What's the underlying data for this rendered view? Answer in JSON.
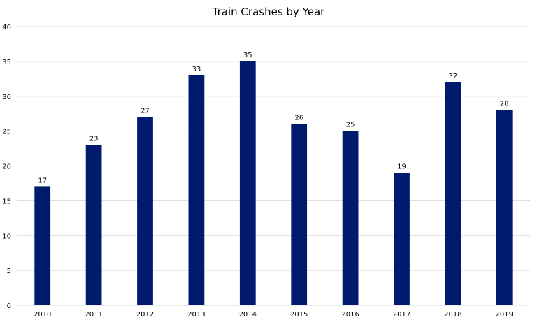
{
  "chart_data": {
    "type": "bar",
    "title": "Train Crashes by Year",
    "categories": [
      "2010",
      "2011",
      "2012",
      "2013",
      "2014",
      "2015",
      "2016",
      "2017",
      "2018",
      "2019"
    ],
    "values": [
      17,
      23,
      27,
      33,
      35,
      26,
      25,
      19,
      32,
      28
    ],
    "data_labels": [
      "17",
      "23",
      "27",
      "33",
      "35",
      "26",
      "25",
      "19",
      "32",
      "28"
    ],
    "y_ticks": [
      "0",
      "5",
      "10",
      "15",
      "20",
      "25",
      "30",
      "35",
      "40"
    ],
    "ylim": [
      0,
      40
    ],
    "xlabel": "",
    "ylabel": "",
    "grid": true,
    "legend": "none",
    "bar_color": "#001a6e",
    "grid_color": "#d9d9d9"
  }
}
